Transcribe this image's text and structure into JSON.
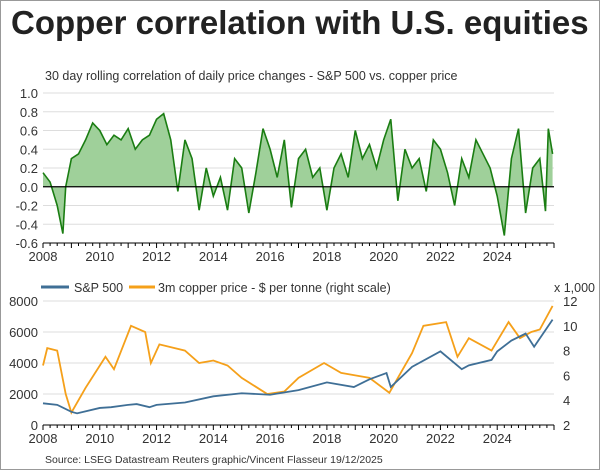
{
  "title": "Copper correlation with U.S. equities",
  "source": "Source: LSEG Datastream Reuters graphic/Vincent Flasseur 19/12/2025",
  "chart_data": [
    {
      "type": "area",
      "title": "30 day rolling correlation of daily price changes - S&P 500 vs. copper price",
      "ylim": [
        -0.6,
        1.0
      ],
      "yticks": [
        "1.0",
        "0.8",
        "0.6",
        "0.4",
        "0.2",
        "0.0",
        "-0.2",
        "-0.4",
        "-0.6"
      ],
      "xlim": [
        2008,
        2026
      ],
      "xticks": [
        "2008",
        "2010",
        "2012",
        "2014",
        "2016",
        "2018",
        "2020",
        "2022",
        "2024"
      ],
      "grid": true,
      "colors": {
        "line": "#1a7d12",
        "fill": "#9fd09a"
      },
      "x": [
        2008,
        2008.25,
        2008.5,
        2008.7,
        2008.8,
        2009,
        2009.25,
        2009.5,
        2009.75,
        2010,
        2010.25,
        2010.5,
        2010.75,
        2011,
        2011.25,
        2011.5,
        2011.75,
        2012,
        2012.25,
        2012.5,
        2012.75,
        2013,
        2013.25,
        2013.5,
        2013.75,
        2014,
        2014.25,
        2014.5,
        2014.75,
        2015,
        2015.25,
        2015.5,
        2015.75,
        2016,
        2016.25,
        2016.5,
        2016.75,
        2017,
        2017.25,
        2017.5,
        2017.75,
        2018,
        2018.25,
        2018.5,
        2018.75,
        2019,
        2019.25,
        2019.5,
        2019.75,
        2020,
        2020.25,
        2020.5,
        2020.75,
        2021,
        2021.25,
        2021.5,
        2021.75,
        2022,
        2022.25,
        2022.5,
        2022.75,
        2023,
        2023.25,
        2023.5,
        2023.75,
        2024,
        2024.25,
        2024.5,
        2024.75,
        2025,
        2025.25,
        2025.5,
        2025.7,
        2025.8,
        2025.95
      ],
      "values": [
        0.15,
        0.05,
        -0.2,
        -0.5,
        0.0,
        0.3,
        0.35,
        0.5,
        0.68,
        0.6,
        0.45,
        0.55,
        0.5,
        0.62,
        0.4,
        0.5,
        0.55,
        0.72,
        0.78,
        0.5,
        -0.05,
        0.5,
        0.3,
        -0.25,
        0.2,
        -0.1,
        0.1,
        -0.25,
        0.3,
        0.2,
        -0.28,
        0.15,
        0.62,
        0.4,
        0.1,
        0.5,
        -0.22,
        0.3,
        0.4,
        0.1,
        0.2,
        -0.25,
        0.2,
        0.35,
        0.1,
        0.6,
        0.3,
        0.45,
        0.2,
        0.5,
        0.72,
        -0.15,
        0.4,
        0.2,
        0.3,
        -0.05,
        0.5,
        0.4,
        0.15,
        -0.2,
        0.3,
        0.1,
        0.5,
        0.35,
        0.2,
        -0.1,
        -0.52,
        0.3,
        0.62,
        -0.28,
        0.2,
        0.3,
        -0.26,
        0.62,
        0.35
      ]
    },
    {
      "type": "line",
      "ylim": [
        0,
        8000
      ],
      "yticks": [
        "8000",
        "6000",
        "4000",
        "2000",
        "0"
      ],
      "y2lim": [
        2,
        12
      ],
      "y2ticks": [
        "12",
        "10",
        "8",
        "6",
        "4",
        "2"
      ],
      "y2unit": "x 1,000",
      "xlim": [
        2008,
        2026
      ],
      "xticks": [
        "2008",
        "2010",
        "2012",
        "2014",
        "2016",
        "2018",
        "2020",
        "2022",
        "2024"
      ],
      "grid": true,
      "legend": "top-left",
      "series": [
        {
          "name": "S&P 500",
          "axis": "left",
          "color": "#3f6f96",
          "x": [
            2008,
            2008.5,
            2009,
            2009.2,
            2010,
            2010.4,
            2011,
            2011.3,
            2011.75,
            2012,
            2013,
            2014,
            2015,
            2016,
            2017,
            2018,
            2018.95,
            2019.5,
            2020.1,
            2020.25,
            2021,
            2022,
            2022.75,
            2023,
            2023.8,
            2024,
            2024.5,
            2025,
            2025.3,
            2025.95
          ],
          "values": [
            1400,
            1300,
            850,
            750,
            1100,
            1150,
            1300,
            1350,
            1150,
            1300,
            1450,
            1850,
            2050,
            1950,
            2250,
            2750,
            2450,
            2950,
            3350,
            2450,
            3750,
            4750,
            3600,
            3850,
            4200,
            4750,
            5450,
            5900,
            5050,
            6800
          ]
        },
        {
          "name": "3m copper price - $ per tonne (right scale)",
          "axis": "right",
          "color": "#f5a01a",
          "x": [
            2008,
            2008.15,
            2008.5,
            2008.8,
            2009,
            2009.5,
            2010.2,
            2010.5,
            2011.1,
            2011.6,
            2011.8,
            2012.1,
            2013,
            2013.5,
            2014,
            2014.5,
            2015,
            2015.9,
            2016.5,
            2017,
            2017.9,
            2018.5,
            2019,
            2019.5,
            2020.2,
            2021,
            2021.4,
            2022.2,
            2022.6,
            2023,
            2023.8,
            2024.4,
            2024.8,
            2025.2,
            2025.5,
            2025.95
          ],
          "values": [
            6.8,
            8.2,
            8.0,
            4.5,
            3.0,
            5.0,
            7.5,
            6.5,
            10.0,
            9.5,
            7.0,
            8.5,
            8.0,
            7.0,
            7.2,
            6.8,
            5.8,
            4.5,
            4.7,
            5.8,
            7.0,
            6.2,
            6.0,
            5.8,
            4.6,
            7.8,
            10.0,
            10.3,
            7.5,
            9.0,
            8.0,
            10.3,
            9.0,
            9.5,
            9.7,
            11.6
          ]
        }
      ]
    }
  ]
}
